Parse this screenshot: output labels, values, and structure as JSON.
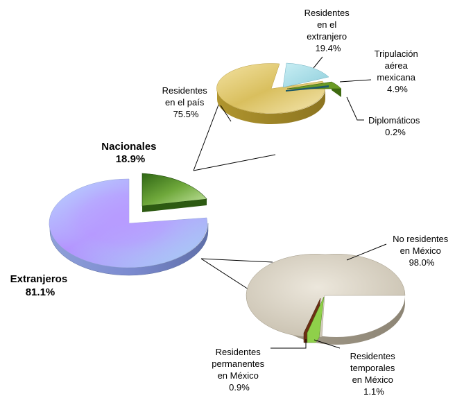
{
  "chart_data": [
    {
      "type": "pie",
      "style": "3d-exploded",
      "slices": [
        {
          "label": [
            "Extranjeros",
            "81.1%"
          ],
          "value": 81.1,
          "color": "#9fb4ff"
        },
        {
          "label": [
            "Nacionales",
            "18.9%"
          ],
          "value": 18.9,
          "color": "#3f7a1c"
        }
      ]
    },
    {
      "type": "pie",
      "style": "3d-exploded",
      "breakdown_of": "Nacionales",
      "slices": [
        {
          "label": [
            "Residentes",
            "en el país",
            "75.5%"
          ],
          "value": 75.5,
          "color": "#d9bf5e"
        },
        {
          "label": [
            "Residentes",
            "en el",
            "extranjero",
            "19.4%"
          ],
          "value": 19.4,
          "color": "#a9dde6"
        },
        {
          "label": [
            "Tripulación",
            "aérea",
            "mexicana",
            "4.9%"
          ],
          "value": 4.9,
          "color": "#5f8f1e"
        },
        {
          "label": [
            "Diplomáticos",
            "0.2%"
          ],
          "value": 0.2,
          "color": "#1f5a66"
        }
      ]
    },
    {
      "type": "pie",
      "style": "3d-exploded",
      "breakdown_of": "Extranjeros",
      "slices": [
        {
          "label": [
            "No residentes",
            "en México",
            "98.0%"
          ],
          "value": 98.0,
          "color": "#dcd5c6"
        },
        {
          "label": [
            "Residentes",
            "temporales",
            "en México",
            "1.1%"
          ],
          "value": 1.1,
          "color": "#8fd04a"
        },
        {
          "label": [
            "Residentes",
            "permanentes",
            "en México",
            "0.9%"
          ],
          "value": 0.9,
          "color": "#7a3b1c"
        }
      ]
    }
  ]
}
